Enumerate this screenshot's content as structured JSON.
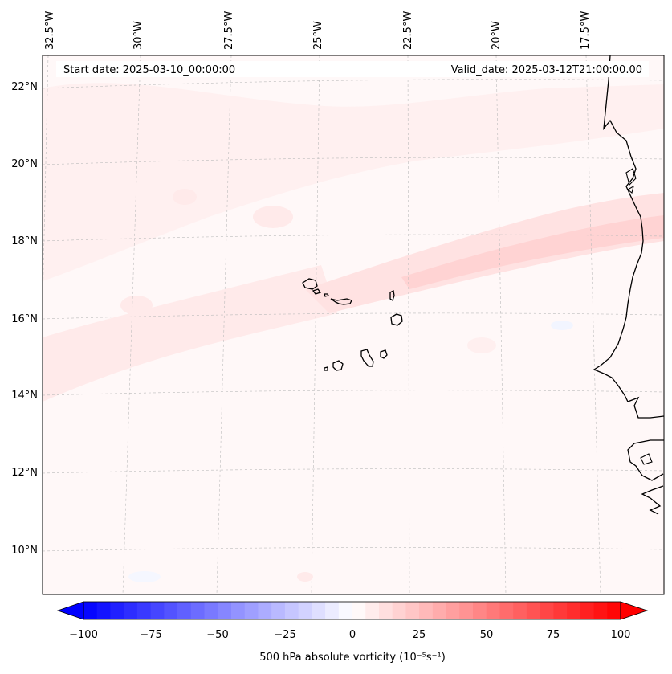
{
  "header": {
    "start_date": "Start date: 2025-03-10_00:00:00",
    "valid_date": "Valid_date: 2025-03-12T21:00:00.00"
  },
  "map": {
    "lon_labels": [
      "32.5°W",
      "30°W",
      "27.5°W",
      "25°W",
      "22.5°W",
      "20°W",
      "17.5°W"
    ],
    "lat_labels": [
      "22°N",
      "20°N",
      "18°N",
      "16°N",
      "14°N",
      "12°N",
      "10°N"
    ],
    "gridlines": true
  },
  "colorbar": {
    "label": "500 hPa absolute vorticity (10⁻⁵s⁻¹)",
    "ticks": [
      "−100",
      "−75",
      "−50",
      "−25",
      "0",
      "25",
      "50",
      "75",
      "100"
    ],
    "range": [
      -100,
      100
    ],
    "colormap": "bwr",
    "extend": "both",
    "color_min": "#0000ff",
    "color_mid": "#ffffff",
    "color_max": "#ff0000"
  }
}
